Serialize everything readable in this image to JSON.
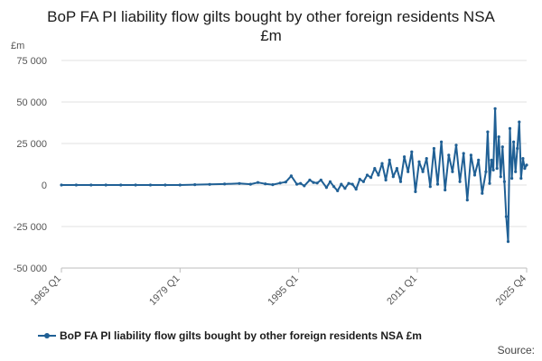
{
  "chart_data": {
    "type": "line",
    "title": "BoP FA PI liability flow gilts bought by other foreign residents NSA £m",
    "ylabel": "£m",
    "xlabel": "",
    "ylim": [
      -50000,
      75000
    ],
    "yticks": [
      -50000,
      -25000,
      0,
      25000,
      50000,
      75000
    ],
    "ytick_labels": [
      "-50 000",
      "-25 000",
      "0",
      "25 000",
      "50 000",
      "75 000"
    ],
    "xlim": [
      1963.0,
      2025.75
    ],
    "xticks": [
      1963.0,
      1979.0,
      1995.0,
      2011.0,
      2025.75
    ],
    "xtick_labels": [
      "1963 Q1",
      "1979 Q1",
      "1995 Q1",
      "2011 Q1",
      "2025 Q4"
    ],
    "grid": true,
    "legend_position": "bottom",
    "series": [
      {
        "name": "BoP FA PI liability flow gilts bought by other foreign residents NSA £m",
        "color": "#206095",
        "x": [
          1963.0,
          1965.0,
          1967.0,
          1969.0,
          1971.0,
          1973.0,
          1975.0,
          1977.0,
          1979.0,
          1981.0,
          1983.0,
          1985.0,
          1987.0,
          1988.5,
          1989.5,
          1990.5,
          1991.5,
          1992.5,
          1993.25,
          1994.0,
          1994.75,
          1995.25,
          1995.75,
          1996.5,
          1997.0,
          1997.5,
          1998.0,
          1998.75,
          1999.25,
          1999.75,
          2000.25,
          2000.75,
          2001.25,
          2001.75,
          2002.25,
          2002.75,
          2003.25,
          2003.75,
          2004.25,
          2004.75,
          2005.25,
          2005.75,
          2006.25,
          2006.75,
          2007.25,
          2007.75,
          2008.25,
          2008.75,
          2009.25,
          2009.75,
          2010.25,
          2010.75,
          2011.25,
          2011.75,
          2012.25,
          2012.75,
          2013.25,
          2013.75,
          2014.25,
          2014.75,
          2015.25,
          2015.75,
          2016.25,
          2016.75,
          2017.25,
          2017.75,
          2018.25,
          2018.75,
          2019.25,
          2019.75,
          2020.25,
          2020.5,
          2020.75,
          2021.0,
          2021.25,
          2021.5,
          2021.75,
          2022.0,
          2022.25,
          2022.5,
          2022.75,
          2023.0,
          2023.25,
          2023.5,
          2023.75,
          2024.0,
          2024.25,
          2024.5,
          2024.75,
          2025.0,
          2025.25,
          2025.5,
          2025.75
        ],
        "values": [
          0,
          0,
          0,
          0,
          0,
          0,
          0,
          0,
          0,
          200,
          400,
          600,
          900,
          500,
          1500,
          700,
          200,
          1200,
          1800,
          5500,
          500,
          1000,
          -500,
          3000,
          1500,
          1200,
          3000,
          -1500,
          2000,
          -1000,
          -3500,
          500,
          -2000,
          1000,
          500,
          -2500,
          3500,
          2000,
          6000,
          4500,
          10000,
          6000,
          13000,
          3000,
          15000,
          5000,
          10000,
          2000,
          17000,
          8000,
          20000,
          -4000,
          14000,
          8000,
          16000,
          -1000,
          22000,
          500,
          26000,
          -3000,
          18000,
          8000,
          24000,
          2000,
          19000,
          -9000,
          18000,
          6000,
          15000,
          -5000,
          8000,
          32000,
          1000,
          15000,
          9000,
          46000,
          10000,
          29000,
          5000,
          23000,
          2000,
          -19000,
          -34000,
          34000,
          4000,
          26000,
          8000,
          22000,
          38000,
          4000,
          16000,
          10000,
          12000
        ]
      }
    ]
  },
  "source_label": "Source:"
}
